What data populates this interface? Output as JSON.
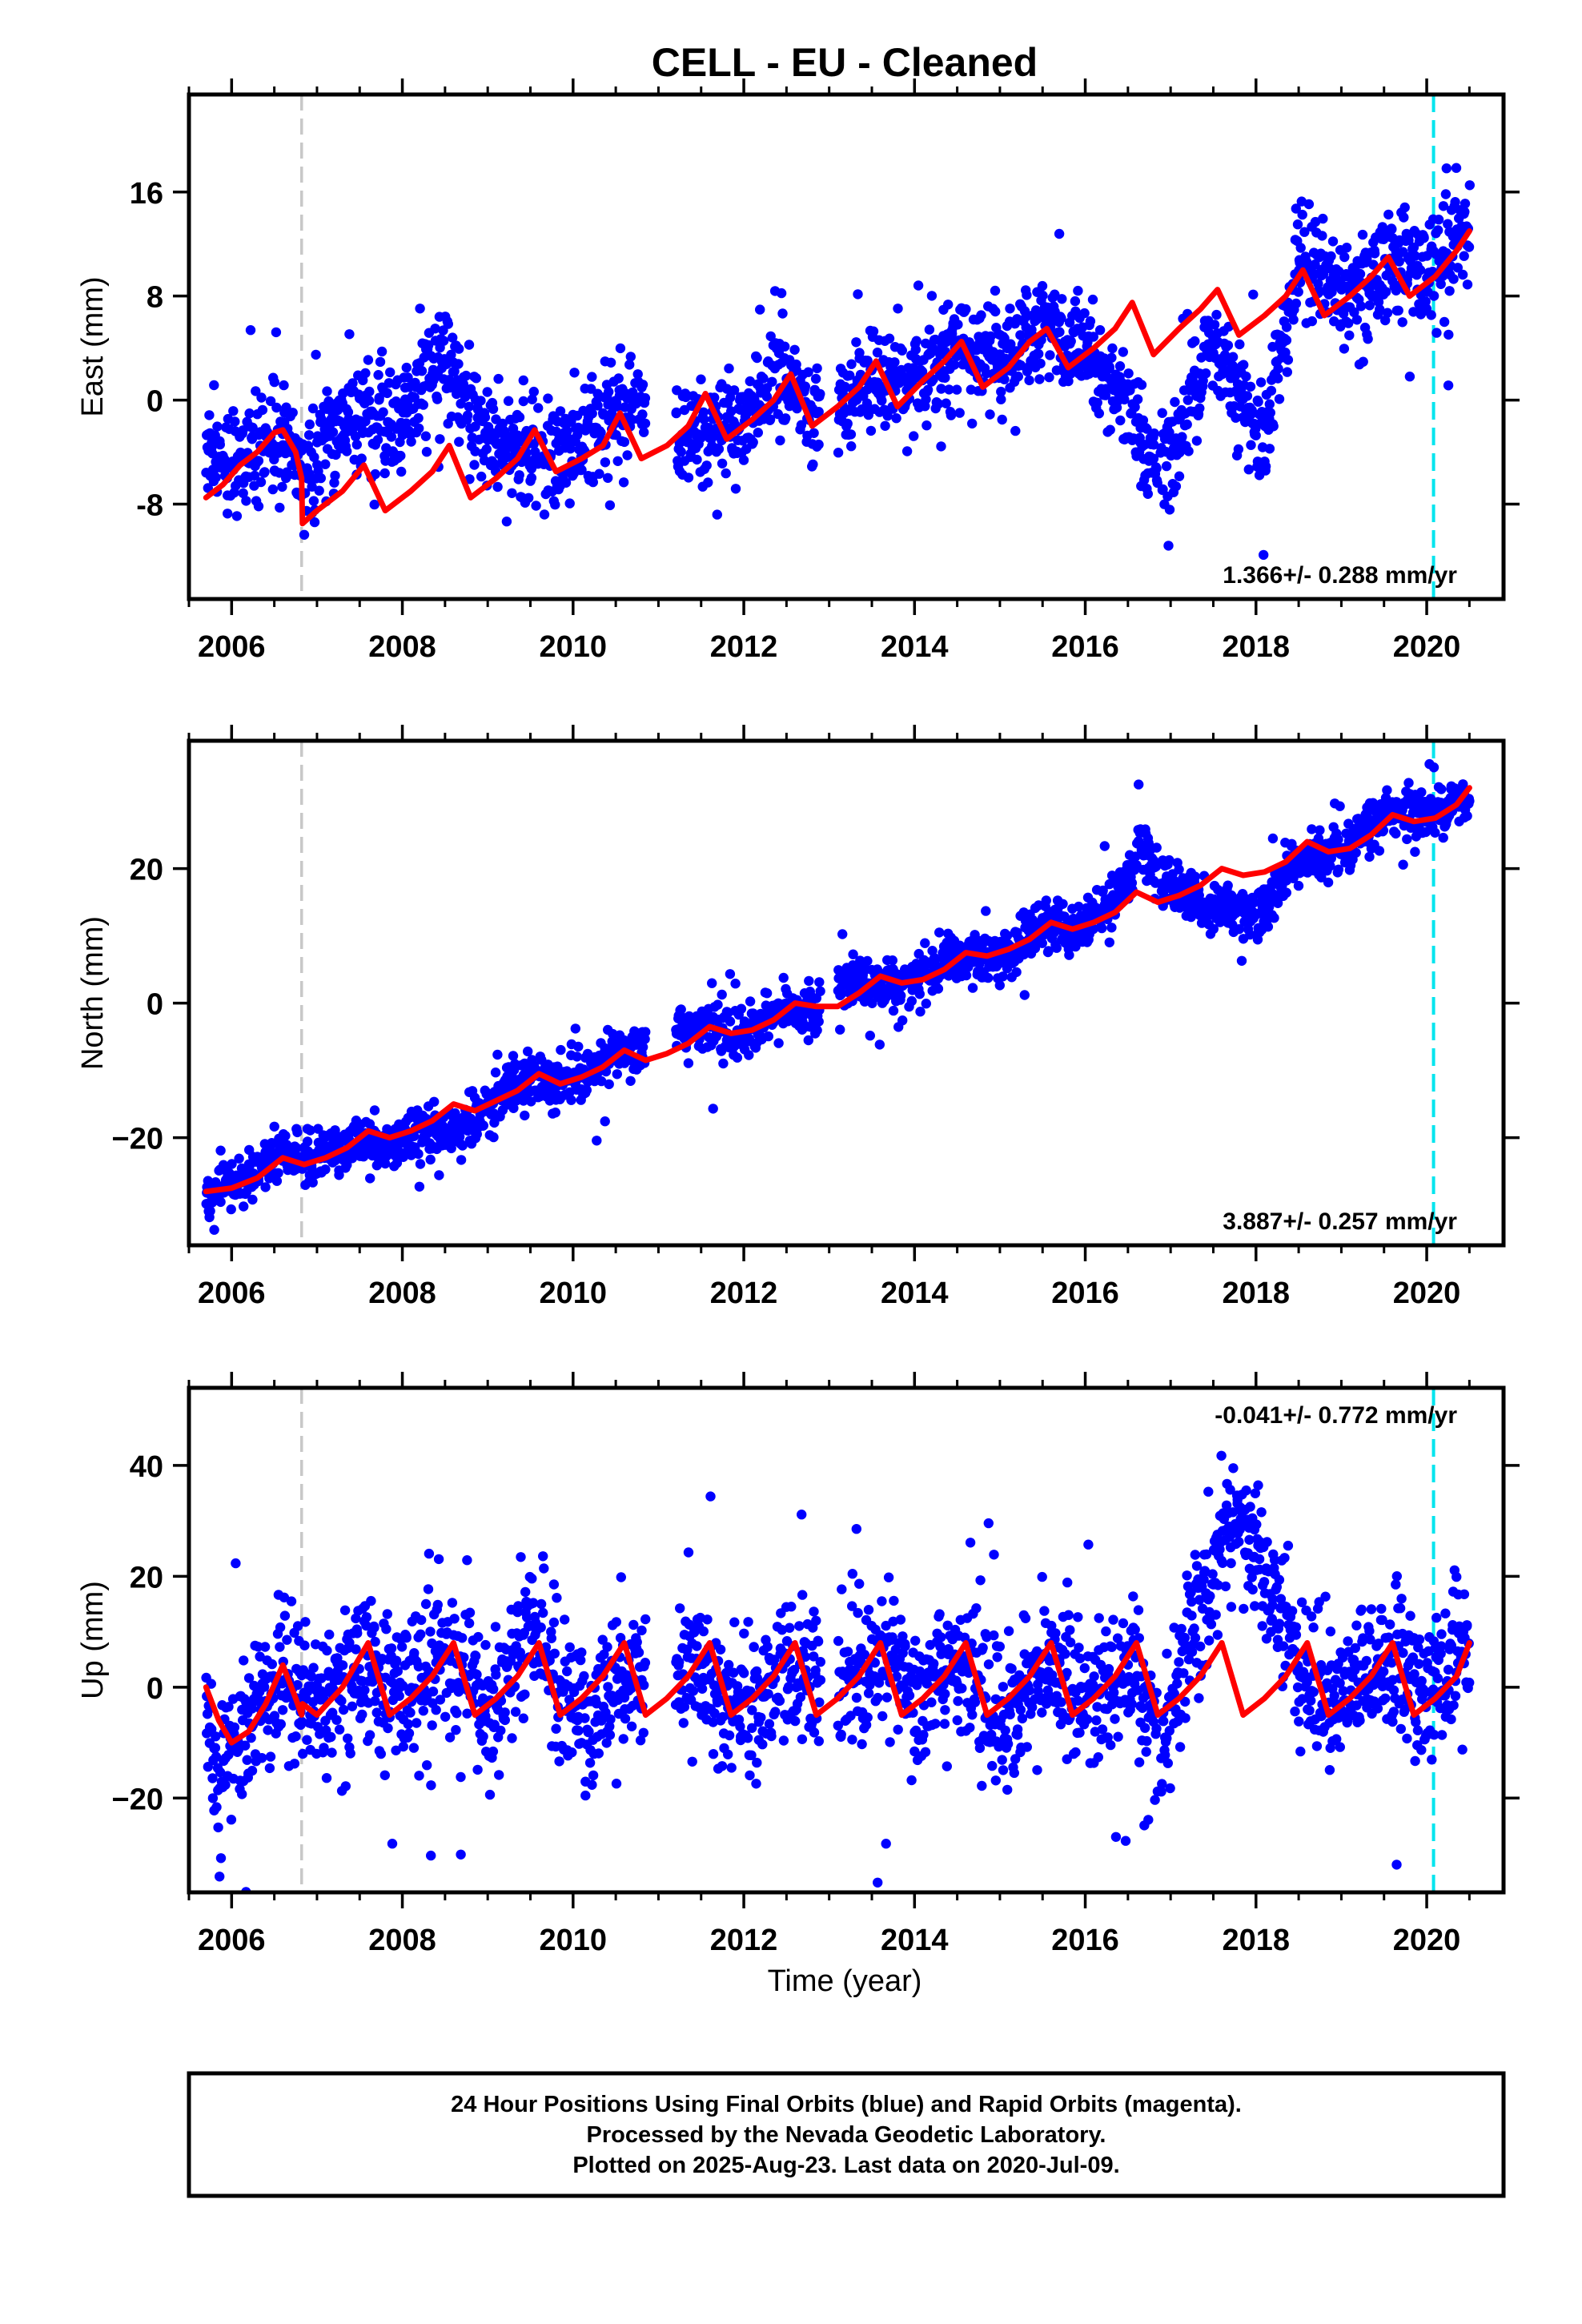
{
  "title": "CELL  - EU - Cleaned",
  "x_axis_label": "Time (year)",
  "colors": {
    "points": "#0000ff",
    "fit": "#ff0000",
    "offset_line": "#c8c8c8",
    "end_line": "#00e5ee",
    "frame": "#000000"
  },
  "footer": {
    "line1": "24 Hour Positions Using Final Orbits (blue) and Rapid Orbits (magenta).",
    "line2": "Processed by the Nevada Geodetic Laboratory.",
    "line3": "Plotted on 2025-Aug-23. Last data on 2020-Jul-09."
  },
  "chart_data": [
    {
      "type": "scatter",
      "panel": "east",
      "ylabel": "East (mm)",
      "xlim": [
        2005.5,
        2020.9
      ],
      "ylim": [
        -15.3,
        23.5
      ],
      "xticks": [
        2006,
        2008,
        2010,
        2012,
        2014,
        2016,
        2018,
        2020
      ],
      "xtick_labels": [
        "2006",
        "2008",
        "2010",
        "2012",
        "2014",
        "2016",
        "2018",
        "2020"
      ],
      "yticks": [
        -8,
        0,
        8,
        16
      ],
      "ytick_labels": [
        "-8",
        "0",
        "8",
        "16"
      ],
      "rate_label": "1.366+/- 0.288 mm/yr",
      "rate_position": "bottom-right",
      "vertical_lines": [
        {
          "x": 2006.82,
          "kind": "offset"
        },
        {
          "x": 2020.08,
          "kind": "end"
        }
      ],
      "gaps": [
        [
          2010.85,
          2011.2
        ],
        [
          2012.9,
          2013.1
        ],
        [
          2016.85,
          2016.88
        ]
      ],
      "series": [
        {
          "role": "observations",
          "x": [
            2005.7,
            2006.0,
            2006.3,
            2006.6,
            2006.8,
            2007.0,
            2007.3,
            2007.6,
            2007.9,
            2008.2,
            2008.5,
            2008.8,
            2009.1,
            2009.4,
            2009.7,
            2010.0,
            2010.3,
            2010.6,
            2011.3,
            2011.6,
            2011.9,
            2012.2,
            2012.5,
            2012.8,
            2013.2,
            2013.5,
            2013.8,
            2014.1,
            2014.4,
            2014.7,
            2015.0,
            2015.3,
            2015.6,
            2015.9,
            2016.2,
            2016.5,
            2016.7,
            2016.9,
            2017.1,
            2017.3,
            2017.5,
            2017.7,
            2017.9,
            2018.1,
            2018.5,
            2018.8,
            2019.1,
            2019.4,
            2019.7,
            2020.0,
            2020.3,
            2020.5
          ],
          "y": [
            -3.5,
            -4.5,
            -4.0,
            -3.0,
            -6.0,
            -4.0,
            -1.5,
            -1.0,
            -2.5,
            1.0,
            3.5,
            -1.0,
            -4.0,
            -3.5,
            -5.0,
            -3.5,
            -2.0,
            -0.5,
            -3.0,
            -2.5,
            -2.0,
            0.0,
            2.0,
            -1.0,
            0.5,
            2.0,
            0.5,
            2.5,
            4.0,
            3.5,
            3.0,
            4.5,
            5.5,
            3.0,
            2.5,
            0.0,
            -3.5,
            -5.5,
            -3.0,
            2.0,
            5.0,
            2.0,
            -1.0,
            -2.5,
            11.0,
            9.5,
            8.5,
            10.0,
            11.0,
            9.0,
            12.0,
            13.0
          ]
        },
        {
          "role": "model_fit",
          "x": [
            2005.7,
            2005.9,
            2006.1,
            2006.3,
            2006.5,
            2006.6,
            2006.75,
            2006.82,
            2006.83,
            2007.0,
            2007.3,
            2007.55,
            2007.8,
            2008.1,
            2008.35,
            2008.55,
            2008.8,
            2009.1,
            2009.35,
            2009.55,
            2009.8,
            2010.1,
            2010.35,
            2010.55,
            2010.8,
            2011.1,
            2011.35,
            2011.55,
            2011.8,
            2012.1,
            2012.35,
            2012.55,
            2012.8,
            2013.1,
            2013.35,
            2013.55,
            2013.8,
            2014.1,
            2014.35,
            2014.55,
            2014.8,
            2015.1,
            2015.35,
            2015.55,
            2015.8,
            2016.1,
            2016.35,
            2016.55,
            2016.8,
            2017.1,
            2017.35,
            2017.55,
            2017.8,
            2018.1,
            2018.35,
            2018.55,
            2018.8,
            2019.1,
            2019.35,
            2019.55,
            2019.8,
            2020.1,
            2020.35,
            2020.5
          ],
          "y": [
            -7.5,
            -6.5,
            -5.0,
            -4.0,
            -2.5,
            -2.3,
            -4.0,
            -6.0,
            -9.5,
            -8.5,
            -7.0,
            -5.0,
            -8.5,
            -7.0,
            -5.5,
            -3.5,
            -7.5,
            -6.0,
            -4.5,
            -2.3,
            -5.5,
            -4.5,
            -3.5,
            -1.0,
            -4.5,
            -3.5,
            -2.0,
            0.5,
            -3.0,
            -1.5,
            0.0,
            2.0,
            -2.0,
            -0.5,
            1.0,
            3.0,
            -0.5,
            1.5,
            3.0,
            4.5,
            1.0,
            2.5,
            4.5,
            5.5,
            2.5,
            4.0,
            5.5,
            7.5,
            3.5,
            5.5,
            7.0,
            8.5,
            5.0,
            6.5,
            8.0,
            10.0,
            6.5,
            8.0,
            9.5,
            11.0,
            8.0,
            9.5,
            11.5,
            13.0
          ]
        }
      ]
    },
    {
      "type": "scatter",
      "panel": "north",
      "ylabel": "North (mm)",
      "xlim": [
        2005.5,
        2020.9
      ],
      "ylim": [
        -36.0,
        39.0
      ],
      "xticks": [
        2006,
        2008,
        2010,
        2012,
        2014,
        2016,
        2018,
        2020
      ],
      "xtick_labels": [
        "2006",
        "2008",
        "2010",
        "2012",
        "2014",
        "2016",
        "2018",
        "2020"
      ],
      "yticks": [
        -20,
        0,
        20
      ],
      "ytick_labels": [
        "−20",
        "0",
        "20"
      ],
      "rate_label": "3.887+/- 0.257 mm/yr",
      "rate_position": "bottom-right",
      "vertical_lines": [
        {
          "x": 2006.82,
          "kind": "offset"
        },
        {
          "x": 2020.08,
          "kind": "end"
        }
      ],
      "gaps": [
        [
          2010.85,
          2011.2
        ],
        [
          2012.9,
          2013.1
        ],
        [
          2016.85,
          2016.88
        ]
      ],
      "series": [
        {
          "role": "observations",
          "x": [
            2005.7,
            2006.0,
            2006.3,
            2006.6,
            2006.9,
            2007.2,
            2007.5,
            2007.8,
            2008.1,
            2008.4,
            2008.7,
            2009.0,
            2009.3,
            2009.6,
            2009.9,
            2010.2,
            2010.5,
            2011.3,
            2011.6,
            2011.9,
            2012.2,
            2012.5,
            2012.8,
            2013.2,
            2013.5,
            2013.8,
            2014.1,
            2014.4,
            2014.7,
            2015.0,
            2015.3,
            2015.6,
            2015.9,
            2016.2,
            2016.5,
            2016.65,
            2016.9,
            2017.2,
            2017.5,
            2017.8,
            2018.0,
            2018.5,
            2018.8,
            2019.1,
            2019.4,
            2019.7,
            2020.0,
            2020.3,
            2020.5
          ],
          "y": [
            -29,
            -27,
            -25,
            -23,
            -23,
            -22,
            -20,
            -21,
            -20,
            -19,
            -19,
            -15,
            -12,
            -11,
            -12,
            -10,
            -8,
            -4,
            -4,
            -5,
            -3,
            -1,
            -2,
            3,
            3,
            2,
            4,
            7,
            6,
            7,
            9,
            12,
            11,
            14,
            18,
            24,
            18,
            16,
            14,
            14,
            13,
            21,
            22,
            23,
            27,
            29,
            28,
            30,
            31
          ]
        },
        {
          "role": "model_fit",
          "x": [
            2005.7,
            2006.0,
            2006.3,
            2006.6,
            2006.85,
            2007.1,
            2007.35,
            2007.6,
            2007.85,
            2008.1,
            2008.35,
            2008.6,
            2008.85,
            2009.1,
            2009.35,
            2009.6,
            2009.85,
            2010.1,
            2010.35,
            2010.6,
            2010.85,
            2011.1,
            2011.35,
            2011.6,
            2011.85,
            2012.1,
            2012.35,
            2012.6,
            2012.85,
            2013.1,
            2013.35,
            2013.6,
            2013.85,
            2014.1,
            2014.35,
            2014.6,
            2014.85,
            2015.1,
            2015.35,
            2015.6,
            2015.85,
            2016.1,
            2016.35,
            2016.6,
            2016.85,
            2017.1,
            2017.35,
            2017.6,
            2017.85,
            2018.1,
            2018.35,
            2018.6,
            2018.85,
            2019.1,
            2019.35,
            2019.6,
            2019.85,
            2020.1,
            2020.35,
            2020.5
          ],
          "y": [
            -28,
            -27.5,
            -26,
            -23,
            -24,
            -23,
            -21.5,
            -19,
            -20,
            -19,
            -17.5,
            -15,
            -16,
            -14.5,
            -13,
            -10.5,
            -12,
            -11,
            -9.5,
            -7,
            -8.5,
            -7.5,
            -6,
            -3.5,
            -4.5,
            -4,
            -2.5,
            0,
            -0.5,
            -0.5,
            1.5,
            4,
            3,
            3.5,
            5,
            7.5,
            7,
            8,
            9.5,
            12,
            11,
            12,
            13.5,
            16.5,
            15,
            16,
            17.5,
            20,
            19,
            19.5,
            21,
            24,
            22.5,
            23,
            25,
            28,
            27,
            27.5,
            29.5,
            32
          ]
        }
      ]
    },
    {
      "type": "scatter",
      "panel": "up",
      "ylabel": "Up (mm)",
      "xlim": [
        2005.5,
        2020.9
      ],
      "ylim": [
        -37.0,
        54.0
      ],
      "xticks": [
        2006,
        2008,
        2010,
        2012,
        2014,
        2016,
        2018,
        2020
      ],
      "xtick_labels": [
        "2006",
        "2008",
        "2010",
        "2012",
        "2014",
        "2016",
        "2018",
        "2020"
      ],
      "yticks": [
        -20,
        0,
        20,
        40
      ],
      "ytick_labels": [
        "−20",
        "0",
        "20",
        "40"
      ],
      "rate_label": "-0.041+/- 0.772 mm/yr",
      "rate_position": "top-right",
      "vertical_lines": [
        {
          "x": 2006.82,
          "kind": "offset"
        },
        {
          "x": 2020.08,
          "kind": "end"
        }
      ],
      "gaps": [
        [
          2010.85,
          2011.2
        ],
        [
          2012.9,
          2013.1
        ],
        [
          2016.85,
          2016.88
        ]
      ],
      "series": [
        {
          "role": "observations",
          "x": [
            2005.7,
            2005.85,
            2006.0,
            2006.3,
            2006.6,
            2006.9,
            2007.2,
            2007.5,
            2007.8,
            2008.1,
            2008.4,
            2008.7,
            2009.0,
            2009.3,
            2009.6,
            2009.9,
            2010.2,
            2010.5,
            2011.3,
            2011.6,
            2011.9,
            2012.2,
            2012.5,
            2012.8,
            2013.2,
            2013.5,
            2013.8,
            2014.1,
            2014.4,
            2014.7,
            2015.0,
            2015.3,
            2015.6,
            2015.9,
            2016.2,
            2016.5,
            2016.7,
            2016.9,
            2017.2,
            2017.4,
            2017.6,
            2017.8,
            2018.5,
            2018.8,
            2019.1,
            2019.4,
            2019.7,
            2020.0,
            2020.3,
            2020.5
          ],
          "y": [
            -5,
            -18,
            -10,
            -3,
            2,
            -3,
            0,
            6,
            0,
            -2,
            5,
            3,
            -5,
            2,
            10,
            -2,
            -6,
            3,
            4,
            2,
            -4,
            -2,
            6,
            0,
            0,
            5,
            2,
            -3,
            4,
            0,
            -6,
            -2,
            4,
            -2,
            -3,
            5,
            -5,
            -10,
            8,
            18,
            25,
            30,
            5,
            -2,
            0,
            3,
            4,
            -2,
            3,
            8
          ]
        },
        {
          "role": "model_fit",
          "x": [
            2005.7,
            2005.85,
            2006.0,
            2006.2,
            2006.4,
            2006.6,
            2006.75,
            2006.82,
            2006.83,
            2007.0,
            2007.3,
            2007.6,
            2007.85,
            2008.1,
            2008.35,
            2008.6,
            2008.85,
            2009.1,
            2009.35,
            2009.6,
            2009.85,
            2010.1,
            2010.35,
            2010.6,
            2010.85,
            2011.1,
            2011.35,
            2011.6,
            2011.85,
            2012.1,
            2012.35,
            2012.6,
            2012.85,
            2013.1,
            2013.35,
            2013.6,
            2013.85,
            2014.1,
            2014.35,
            2014.6,
            2014.85,
            2015.1,
            2015.35,
            2015.6,
            2015.85,
            2016.1,
            2016.35,
            2016.6,
            2016.85,
            2017.1,
            2017.35,
            2017.6,
            2017.85,
            2018.1,
            2018.35,
            2018.6,
            2018.85,
            2019.1,
            2019.35,
            2019.6,
            2019.85,
            2020.1,
            2020.35,
            2020.5
          ],
          "y": [
            0,
            -6,
            -10,
            -8,
            -3,
            4,
            -2,
            -5,
            -3,
            -5,
            0,
            8,
            -5,
            -2,
            2,
            8,
            -5,
            -2,
            2,
            8,
            -5,
            -2,
            2,
            8,
            -5,
            -2,
            2,
            8,
            -5,
            -2,
            2,
            8,
            -5,
            -2,
            2,
            8,
            -5,
            -2,
            2,
            8,
            -5,
            -2,
            2,
            8,
            -5,
            -2,
            2,
            8,
            -5,
            -2,
            2,
            8,
            -5,
            -2,
            2,
            8,
            -5,
            -2,
            2,
            8,
            -5,
            -2,
            2,
            8
          ]
        }
      ]
    }
  ]
}
